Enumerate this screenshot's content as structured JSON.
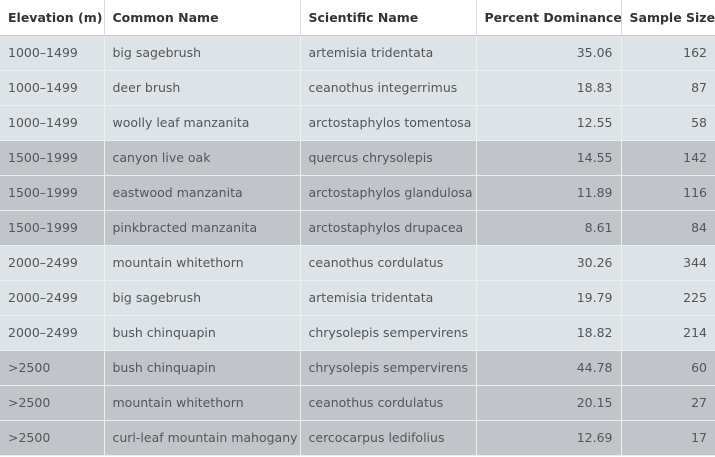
{
  "table": {
    "headers": [
      "Elevation (m)",
      "Common Name",
      "Scientific Name",
      "Percent Dominance",
      "Sample Size"
    ],
    "rows": [
      {
        "band": "light",
        "cells": [
          "1000–1499",
          "big sagebrush",
          "artemisia tridentata",
          "35.06",
          "162"
        ]
      },
      {
        "band": "light",
        "cells": [
          "1000–1499",
          "deer brush",
          "ceanothus integerrimus",
          "18.83",
          "87"
        ]
      },
      {
        "band": "light",
        "cells": [
          "1000–1499",
          "woolly leaf manzanita",
          "arctostaphylos tomentosa",
          "12.55",
          "58"
        ]
      },
      {
        "band": "dark",
        "cells": [
          "1500–1999",
          "canyon live oak",
          "quercus chrysolepis",
          "14.55",
          "142"
        ]
      },
      {
        "band": "dark",
        "cells": [
          "1500–1999",
          "eastwood manzanita",
          "arctostaphylos glandulosa",
          "11.89",
          "116"
        ]
      },
      {
        "band": "dark",
        "cells": [
          "1500–1999",
          "pinkbracted manzanita",
          "arctostaphylos drupacea",
          "8.61",
          "84"
        ]
      },
      {
        "band": "light",
        "cells": [
          "2000–2499",
          "mountain whitethorn",
          "ceanothus cordulatus",
          "30.26",
          "344"
        ]
      },
      {
        "band": "light",
        "cells": [
          "2000–2499",
          "big sagebrush",
          "artemisia tridentata",
          "19.79",
          "225"
        ]
      },
      {
        "band": "light",
        "cells": [
          "2000–2499",
          "bush chinquapin",
          "chrysolepis sempervirens",
          "18.82",
          "214"
        ]
      },
      {
        "band": "dark",
        "cells": [
          ">2500",
          "bush chinquapin",
          "chrysolepis sempervirens",
          "44.78",
          "60"
        ]
      },
      {
        "band": "dark",
        "cells": [
          ">2500",
          "mountain whitethorn",
          "ceanothus cordulatus",
          "20.15",
          "27"
        ]
      },
      {
        "band": "dark",
        "cells": [
          ">2500",
          "curl-leaf mountain mahogany",
          "cercocarpus ledifolius",
          "12.69",
          "17"
        ]
      }
    ]
  },
  "colors": {
    "band_light": "#dde3e6",
    "band_dark": "#c1c5c9",
    "header_bg": "#ffffff"
  }
}
